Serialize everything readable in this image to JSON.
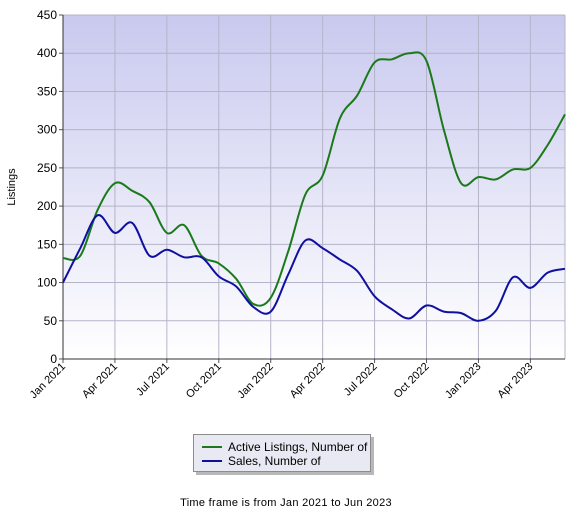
{
  "chart_data": {
    "type": "line",
    "ylabel": "Listings",
    "xlabel": "",
    "ylim": [
      0,
      450
    ],
    "yticks": [
      0,
      50,
      100,
      150,
      200,
      250,
      300,
      350,
      400,
      450
    ],
    "x_ticks": [
      {
        "label": "Jan 2021",
        "index": 0
      },
      {
        "label": "Apr 2021",
        "index": 3
      },
      {
        "label": "Jul 2021",
        "index": 6
      },
      {
        "label": "Oct 2021",
        "index": 9
      },
      {
        "label": "Jan 2022",
        "index": 12
      },
      {
        "label": "Apr 2022",
        "index": 15
      },
      {
        "label": "Jul 2022",
        "index": 18
      },
      {
        "label": "Oct 2022",
        "index": 21
      },
      {
        "label": "Jan 2023",
        "index": 24
      },
      {
        "label": "Apr 2023",
        "index": 27
      }
    ],
    "months": [
      "Jan 2021",
      "Feb 2021",
      "Mar 2021",
      "Apr 2021",
      "May 2021",
      "Jun 2021",
      "Jul 2021",
      "Aug 2021",
      "Sep 2021",
      "Oct 2021",
      "Nov 2021",
      "Dec 2021",
      "Jan 2022",
      "Feb 2022",
      "Mar 2022",
      "Apr 2022",
      "May 2022",
      "Jun 2022",
      "Jul 2022",
      "Aug 2022",
      "Sep 2022",
      "Oct 2022",
      "Nov 2022",
      "Dec 2022",
      "Jan 2023",
      "Feb 2023",
      "Mar 2023",
      "Apr 2023",
      "May 2023",
      "Jun 2023"
    ],
    "series": [
      {
        "name": "Active Listings, Number of",
        "color": "#1a7a1a",
        "values": [
          132,
          135,
          195,
          230,
          220,
          205,
          165,
          175,
          135,
          125,
          105,
          72,
          80,
          140,
          215,
          240,
          315,
          345,
          388,
          392,
          400,
          390,
          300,
          230,
          238,
          235,
          248,
          250,
          280,
          320
        ]
      },
      {
        "name": "Sales, Number of",
        "color": "#1010a0",
        "values": [
          100,
          145,
          188,
          165,
          178,
          135,
          143,
          133,
          133,
          108,
          95,
          68,
          62,
          110,
          155,
          145,
          130,
          115,
          82,
          65,
          53,
          70,
          62,
          60,
          50,
          63,
          107,
          93,
          113,
          118
        ]
      }
    ],
    "grid": true,
    "legend_position": "bottom-center"
  },
  "footer": "Time frame is from Jan 2021 to Jun 2023"
}
